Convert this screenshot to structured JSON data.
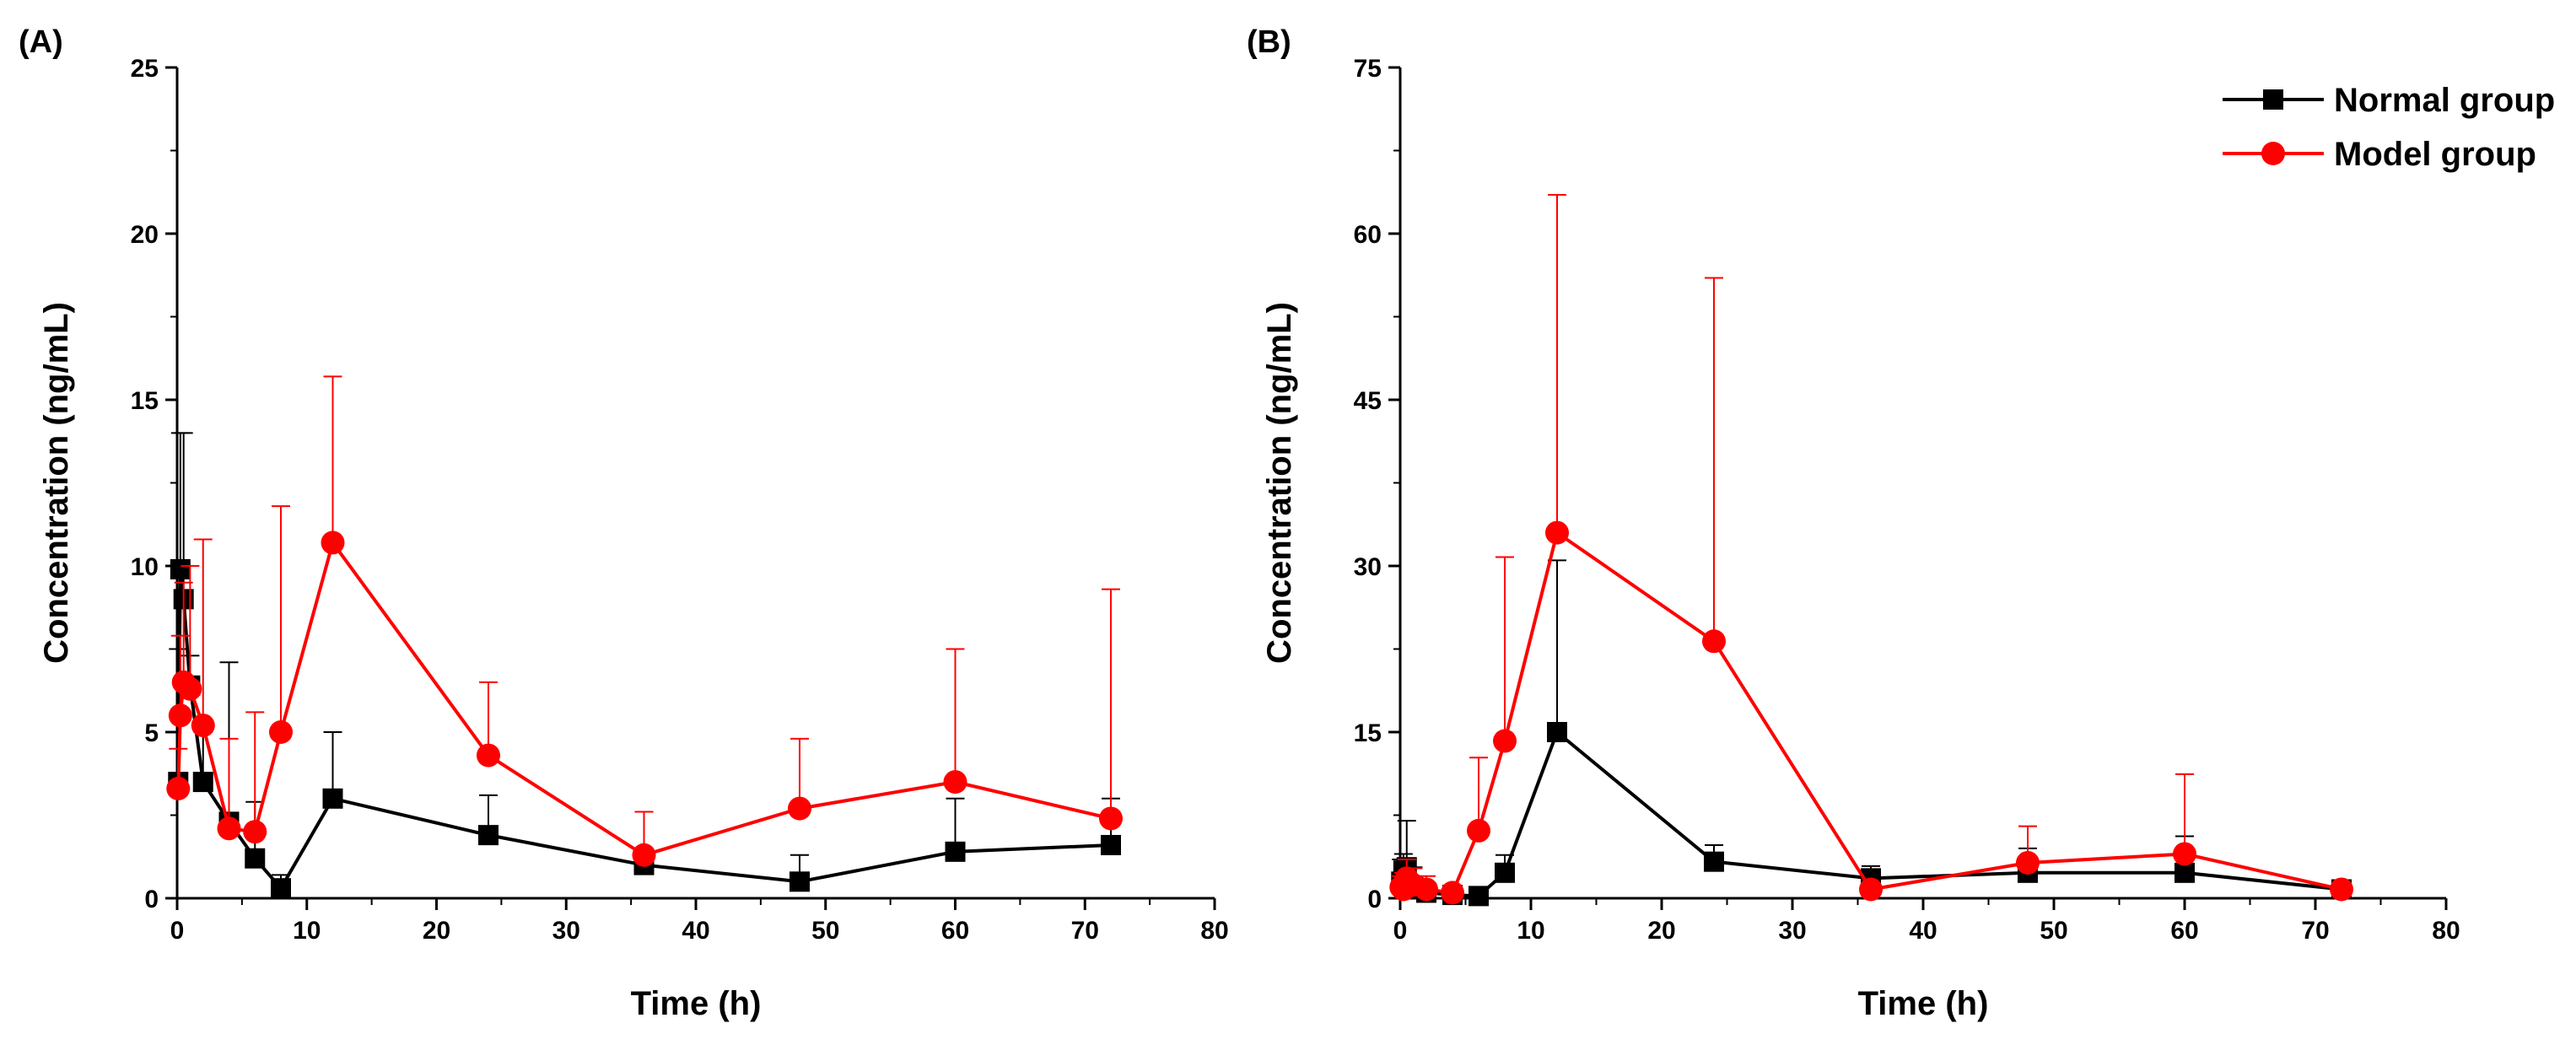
{
  "chart_data": [
    {
      "type": "line",
      "panel_label": "(A)",
      "xlabel": "Time (h)",
      "ylabel": "Concentration (ng/mL)",
      "xlim": [
        0,
        80
      ],
      "ylim": [
        0,
        25
      ],
      "xticks": [
        0,
        10,
        20,
        30,
        40,
        50,
        60,
        70,
        80
      ],
      "yticks": [
        0,
        5,
        10,
        15,
        20,
        25
      ],
      "grid": false,
      "series": [
        {
          "name": "Normal group",
          "color": "#000000",
          "marker": "square",
          "x": [
            0.083,
            0.25,
            0.5,
            1,
            2,
            4,
            6,
            8,
            12,
            24,
            36,
            48,
            60,
            72
          ],
          "values": [
            3.5,
            9.9,
            9.0,
            6.4,
            3.5,
            2.3,
            1.2,
            0.3,
            3.0,
            1.9,
            1.0,
            0.5,
            1.4,
            1.6
          ],
          "errors": [
            4.0,
            4.1,
            5.0,
            0.9,
            1.5,
            4.8,
            1.7,
            0.4,
            2.0,
            1.2,
            1.6,
            0.8,
            1.6,
            1.4
          ]
        },
        {
          "name": "Model group",
          "color": "#ff0000",
          "marker": "circle",
          "x": [
            0.083,
            0.25,
            0.5,
            1,
            2,
            4,
            6,
            8,
            12,
            24,
            36,
            48,
            60,
            72
          ],
          "values": [
            3.3,
            5.5,
            6.5,
            6.3,
            5.2,
            2.1,
            2.0,
            5.0,
            10.7,
            4.3,
            1.3,
            2.7,
            3.5,
            2.4
          ],
          "errors": [
            1.2,
            2.4,
            3.0,
            3.7,
            5.6,
            2.7,
            3.6,
            6.8,
            5.0,
            2.2,
            1.3,
            2.1,
            4.0,
            6.9
          ]
        }
      ]
    },
    {
      "type": "line",
      "panel_label": "(B)",
      "xlabel": "Time (h)",
      "ylabel": "Concentration (ng/mL)",
      "xlim": [
        0,
        80
      ],
      "ylim": [
        0,
        75
      ],
      "xticks": [
        0,
        10,
        20,
        30,
        40,
        50,
        60,
        70,
        80
      ],
      "yticks": [
        0,
        15,
        30,
        45,
        60,
        75
      ],
      "grid": false,
      "legend_position": "top-right",
      "series": [
        {
          "name": "Normal group",
          "color": "#000000",
          "marker": "square",
          "x": [
            0.083,
            0.25,
            0.5,
            1,
            2,
            4,
            6,
            8,
            12,
            24,
            36,
            48,
            60,
            72
          ],
          "values": [
            1.5,
            2.5,
            2.8,
            1.0,
            0.5,
            0.3,
            0.2,
            2.3,
            15.0,
            3.3,
            1.8,
            2.3,
            2.3,
            0.8
          ],
          "errors": [
            2.0,
            1.5,
            4.2,
            1.8,
            0.6,
            0.4,
            0.3,
            1.6,
            15.5,
            1.5,
            1.1,
            2.2,
            3.3,
            0.7
          ]
        },
        {
          "name": "Model group",
          "color": "#ff0000",
          "marker": "circle",
          "x": [
            0.083,
            0.25,
            0.5,
            1,
            2,
            4,
            6,
            8,
            12,
            24,
            36,
            48,
            60,
            72
          ],
          "values": [
            1.0,
            0.8,
            1.8,
            1.2,
            0.8,
            0.5,
            6.1,
            14.2,
            33.0,
            23.2,
            0.8,
            3.2,
            4.0,
            0.8
          ],
          "errors": [
            1.0,
            1.5,
            1.7,
            1.5,
            1.2,
            0.6,
            6.6,
            16.6,
            30.5,
            32.8,
            0.6,
            3.3,
            7.2,
            0.6
          ]
        }
      ]
    }
  ]
}
